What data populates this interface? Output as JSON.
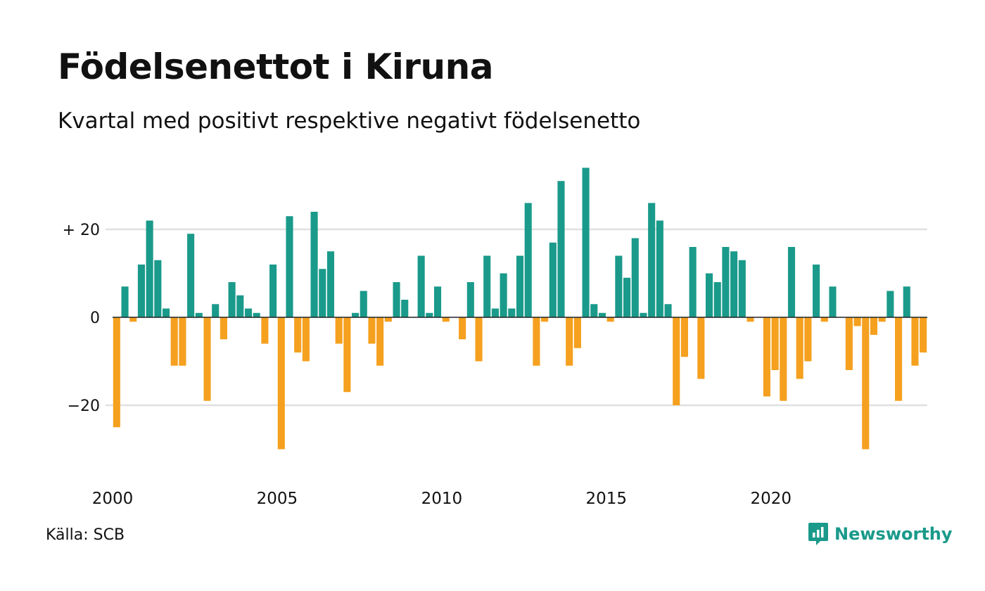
{
  "title": "Födelsenettot i Kiruna",
  "subtitle": "Kvartal med positivt respektive negativt födelsenetto",
  "source": "Källa: SCB",
  "brand": {
    "name": "Newsworthy",
    "icon": "newsworthy-logo-icon"
  },
  "colors": {
    "positive": "#1a9a8a",
    "negative": "#f5a01f",
    "grid": "#e0e0e0",
    "zero": "#222222",
    "text": "#111111"
  },
  "chart_data": {
    "type": "bar",
    "x_start": "2000 Q1",
    "x_ticks": [
      "2000",
      "2005",
      "2010",
      "2015",
      "2020"
    ],
    "y_ticks": [
      {
        "value": 20,
        "label": "+ 20"
      },
      {
        "value": 0,
        "label": "0"
      },
      {
        "value": -20,
        "label": "−20"
      }
    ],
    "ylim": [
      -37,
      37
    ],
    "grid": true,
    "values": [
      -25,
      7,
      -1,
      12,
      22,
      13,
      2,
      -11,
      -11,
      19,
      1,
      -19,
      3,
      -5,
      8,
      5,
      2,
      1,
      -6,
      12,
      -30,
      23,
      -8,
      -10,
      24,
      11,
      15,
      -6,
      -17,
      1,
      6,
      -6,
      -11,
      -1,
      8,
      4,
      0,
      14,
      1,
      7,
      -1,
      0,
      -5,
      8,
      -10,
      14,
      2,
      10,
      2,
      14,
      26,
      -11,
      -1,
      17,
      31,
      -11,
      -7,
      34,
      3,
      1,
      -1,
      14,
      9,
      18,
      1,
      26,
      22,
      3,
      -20,
      -9,
      16,
      -14,
      10,
      8,
      16,
      15,
      13,
      -1,
      0,
      -18,
      -12,
      -19,
      16,
      -14,
      -10,
      12,
      -1,
      7,
      0,
      -12,
      -2,
      -30,
      -4,
      -1,
      6,
      -19,
      7,
      -11,
      -8
    ]
  }
}
